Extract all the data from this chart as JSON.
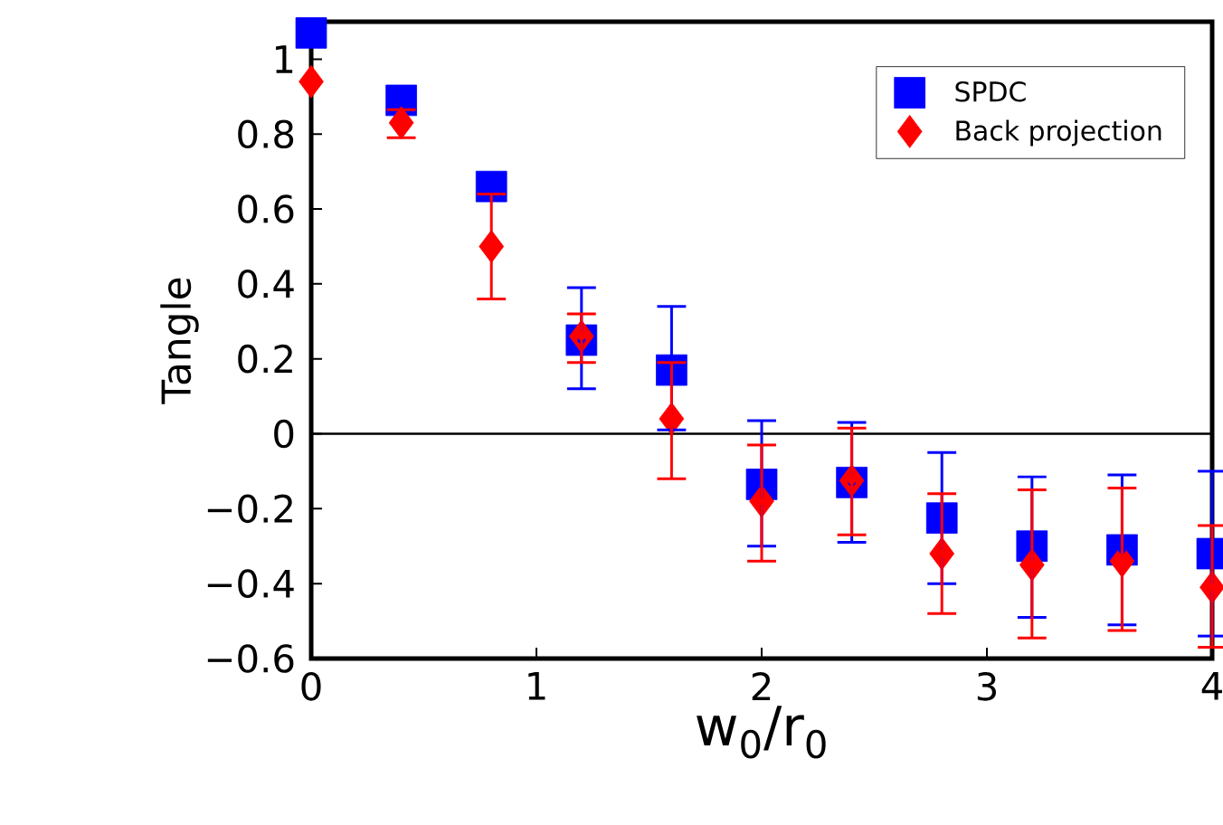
{
  "chart_data": {
    "type": "scatter",
    "xlabel": "w$_{0}$/r$_{0}$",
    "ylabel": "Tangle",
    "x": [
      0,
      0.4,
      0.8,
      1.2,
      1.6,
      2.0,
      2.4,
      2.8,
      3.2,
      3.6,
      4.0
    ],
    "series": [
      {
        "name": "SPDC",
        "color": "#0000ff",
        "marker": "square",
        "values": [
          1.07,
          0.89,
          0.66,
          0.25,
          0.17,
          -0.135,
          -0.13,
          -0.225,
          -0.3,
          -0.31,
          -0.32
        ],
        "errors": [
          null,
          null,
          null,
          [
            0.12,
            0.39
          ],
          [
            0.01,
            0.34
          ],
          [
            -0.3,
            0.035
          ],
          [
            -0.29,
            0.03
          ],
          [
            -0.4,
            -0.05
          ],
          [
            -0.49,
            -0.115
          ],
          [
            -0.51,
            -0.11
          ],
          [
            -0.54,
            -0.1
          ]
        ]
      },
      {
        "name": "Back projection",
        "color": "#ff0000",
        "marker": "diamond",
        "values": [
          0.94,
          0.83,
          0.5,
          0.26,
          0.04,
          -0.18,
          -0.125,
          -0.32,
          -0.35,
          -0.34,
          -0.41
        ],
        "errors": [
          null,
          [
            0.79,
            0.865
          ],
          [
            0.36,
            0.64
          ],
          [
            0.19,
            0.32
          ],
          [
            -0.12,
            0.19
          ],
          [
            -0.34,
            -0.03
          ],
          [
            -0.27,
            0.015
          ],
          [
            -0.48,
            -0.16
          ],
          [
            -0.545,
            -0.15
          ],
          [
            -0.525,
            -0.145
          ],
          [
            -0.57,
            -0.245
          ]
        ]
      }
    ],
    "xlim": [
      0,
      4
    ],
    "ylim": [
      -0.6,
      1.1
    ],
    "xticks": [
      0,
      1,
      2,
      3,
      4
    ],
    "yticks": [
      {
        "value": -0.6,
        "label": "−0.6"
      },
      {
        "value": -0.4,
        "label": "−0.4"
      },
      {
        "value": -0.2,
        "label": "−0.2"
      },
      0,
      0.2,
      0.4,
      0.6,
      0.8,
      1
    ],
    "ref_lines": [
      {
        "axis": "y",
        "value": 0,
        "color": "#000000"
      }
    ],
    "legend": "top right",
    "grid": false
  }
}
